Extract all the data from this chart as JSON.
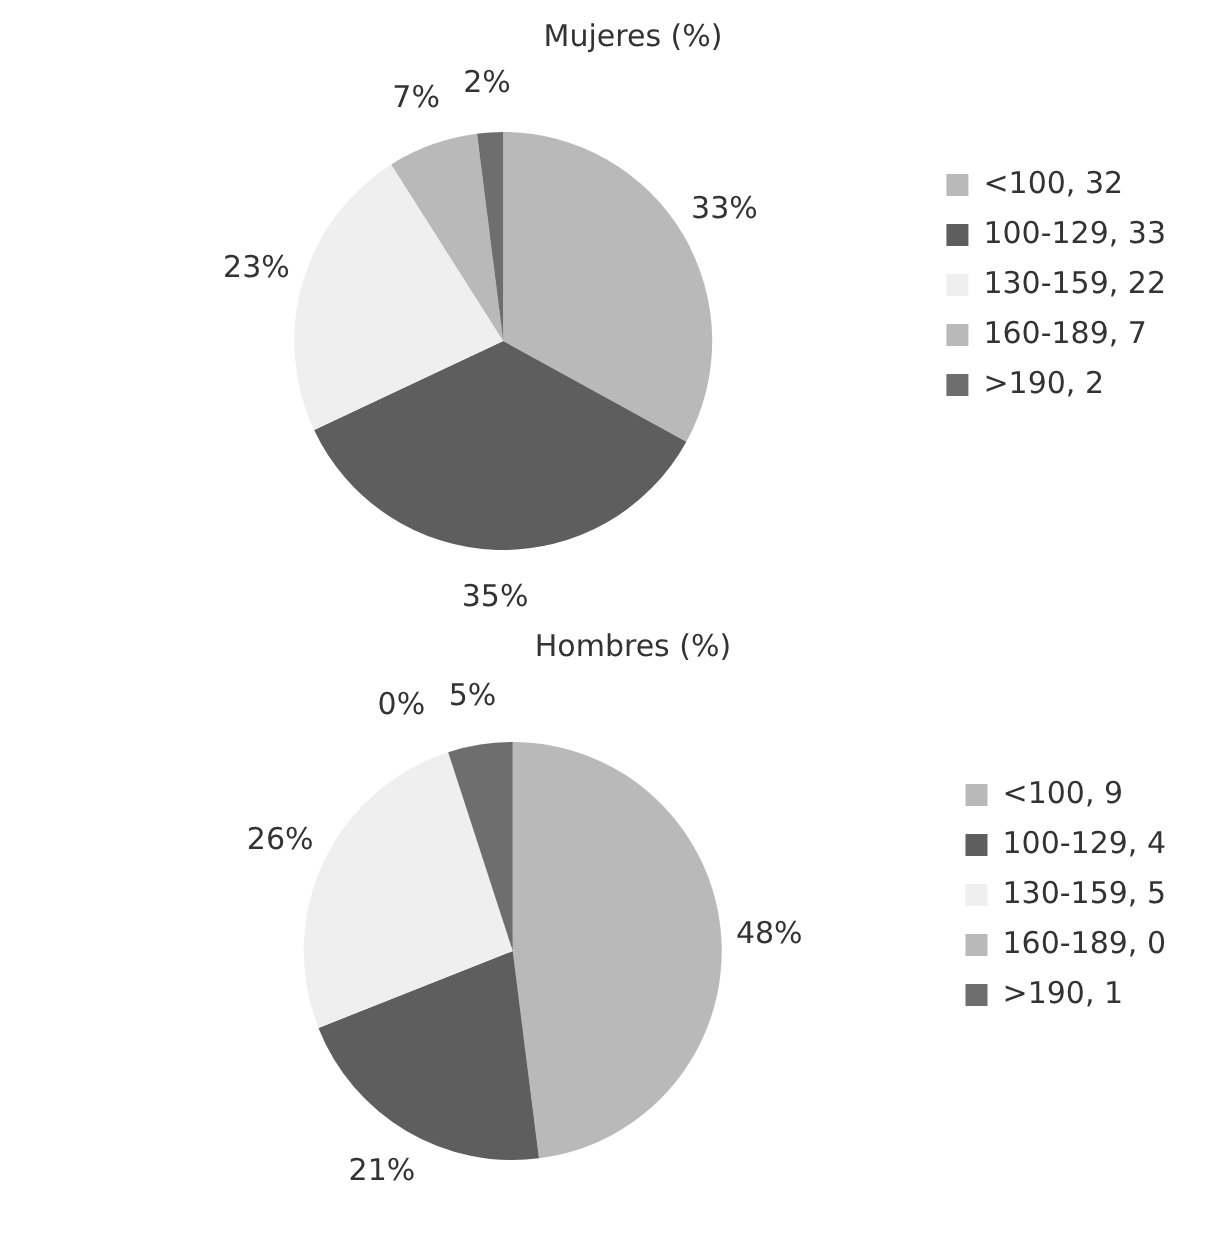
{
  "chart_data": [
    {
      "type": "pie",
      "title": "Mujeres (%)",
      "categories": [
        "<100, 32",
        "100-129, 33",
        "130-159, 22",
        "160-189, 7",
        ">190, 2"
      ],
      "values": [
        33,
        35,
        23,
        7,
        2
      ],
      "colors": [
        "#b9b9b9",
        "#5e5e5e",
        "#efefef",
        "#b9b9b9",
        "#6e6e6e"
      ],
      "value_labels": [
        "33%",
        "35%",
        "23%",
        "7%",
        "2%"
      ],
      "legend": "right"
    },
    {
      "type": "pie",
      "title": "Hombres (%)",
      "categories": [
        "<100, 9",
        "100-129, 4",
        "130-159, 5",
        "160-189, 0",
        ">190, 1"
      ],
      "values": [
        48,
        21,
        26,
        0,
        5
      ],
      "colors": [
        "#b9b9b9",
        "#5e5e5e",
        "#efefef",
        "#b9b9b9",
        "#6e6e6e"
      ],
      "value_labels": [
        "48%",
        "21%",
        "26%",
        "0%",
        "5%"
      ],
      "legend": "right"
    }
  ]
}
